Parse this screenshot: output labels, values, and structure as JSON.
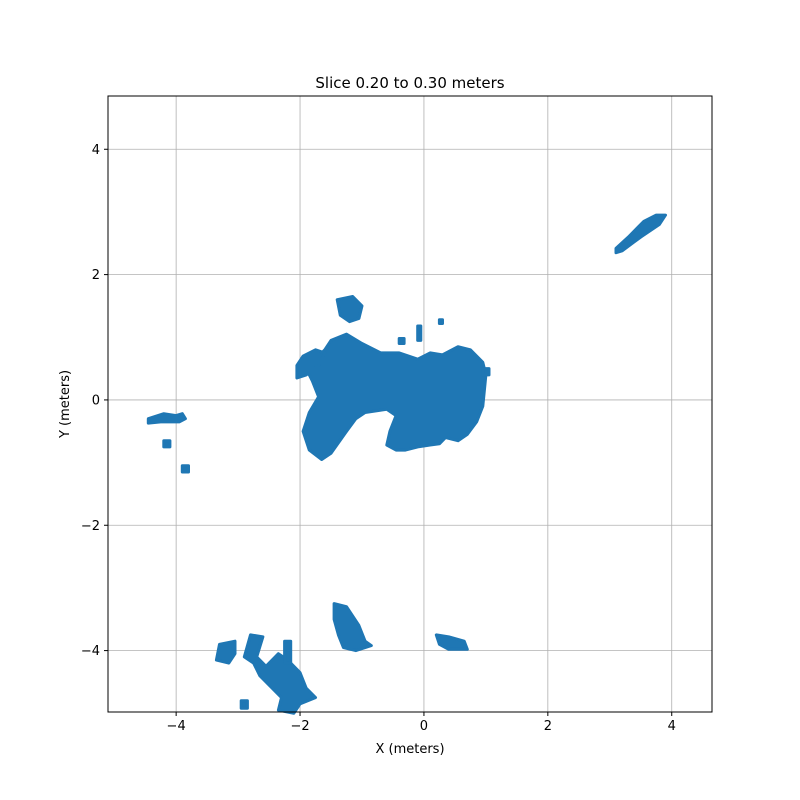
{
  "chart_data": {
    "type": "scatter",
    "title": "Slice 0.20 to 0.30 meters",
    "xlabel": "X (meters)",
    "ylabel": "Y (meters)",
    "xlim": [
      -5.1,
      4.65
    ],
    "ylim": [
      -4.98,
      4.85
    ],
    "xticks": [
      -4,
      -2,
      0,
      2,
      4
    ],
    "yticks": [
      -4,
      -2,
      0,
      2,
      4
    ],
    "xtick_labels": [
      "−4",
      "−2",
      "0",
      "2",
      "4"
    ],
    "ytick_labels": [
      "−4",
      "−2",
      "0",
      "2",
      "4"
    ],
    "grid": true,
    "color": "#1f77b4",
    "clusters": [
      {
        "name": "central-mass",
        "points": [
          [
            -1.5,
            0.95
          ],
          [
            -1.25,
            1.05
          ],
          [
            -1.0,
            0.9
          ],
          [
            -0.7,
            0.75
          ],
          [
            -0.4,
            0.75
          ],
          [
            -0.1,
            0.65
          ],
          [
            0.1,
            0.75
          ],
          [
            0.3,
            0.72
          ],
          [
            0.55,
            0.85
          ],
          [
            0.75,
            0.8
          ],
          [
            0.95,
            0.6
          ],
          [
            1.0,
            0.4
          ],
          [
            0.95,
            -0.1
          ],
          [
            0.85,
            -0.35
          ],
          [
            0.7,
            -0.55
          ],
          [
            0.55,
            -0.65
          ],
          [
            0.35,
            -0.6
          ],
          [
            0.25,
            -0.7
          ],
          [
            0.1,
            -0.72
          ],
          [
            -0.1,
            -0.75
          ],
          [
            -0.3,
            -0.8
          ],
          [
            -0.45,
            -0.8
          ],
          [
            -0.6,
            -0.72
          ],
          [
            -0.55,
            -0.5
          ],
          [
            -0.45,
            -0.25
          ],
          [
            -0.6,
            -0.15
          ],
          [
            -0.95,
            -0.2
          ],
          [
            -1.1,
            -0.3
          ],
          [
            -1.25,
            -0.5
          ],
          [
            -1.5,
            -0.85
          ],
          [
            -1.65,
            -0.95
          ],
          [
            -1.85,
            -0.8
          ],
          [
            -1.95,
            -0.5
          ],
          [
            -1.85,
            -0.2
          ],
          [
            -1.7,
            0.05
          ],
          [
            -1.8,
            0.3
          ],
          [
            -1.9,
            0.5
          ],
          [
            -1.75,
            0.65
          ],
          [
            -1.6,
            0.8
          ]
        ]
      },
      {
        "name": "left-arm",
        "points": [
          [
            -2.05,
            0.55
          ],
          [
            -1.95,
            0.7
          ],
          [
            -1.75,
            0.8
          ],
          [
            -1.6,
            0.75
          ],
          [
            -1.7,
            0.55
          ],
          [
            -1.9,
            0.4
          ],
          [
            -2.05,
            0.35
          ]
        ]
      },
      {
        "name": "upper-blob",
        "points": [
          [
            -1.4,
            1.6
          ],
          [
            -1.15,
            1.65
          ],
          [
            -1.0,
            1.5
          ],
          [
            -1.05,
            1.3
          ],
          [
            -1.2,
            1.25
          ],
          [
            -1.35,
            1.35
          ]
        ]
      },
      {
        "name": "small-right-1",
        "points": [
          [
            0.95,
            0.5
          ],
          [
            1.05,
            0.5
          ],
          [
            1.05,
            0.4
          ],
          [
            0.95,
            0.4
          ]
        ]
      },
      {
        "name": "small-top-1",
        "points": [
          [
            -0.1,
            1.18
          ],
          [
            -0.05,
            1.18
          ],
          [
            -0.05,
            0.95
          ],
          [
            -0.1,
            0.95
          ]
        ]
      },
      {
        "name": "small-top-2",
        "points": [
          [
            0.25,
            1.28
          ],
          [
            0.3,
            1.28
          ],
          [
            0.3,
            1.22
          ],
          [
            0.25,
            1.22
          ]
        ]
      },
      {
        "name": "small-top-3",
        "points": [
          [
            -0.4,
            0.98
          ],
          [
            -0.32,
            0.98
          ],
          [
            -0.32,
            0.9
          ],
          [
            -0.4,
            0.9
          ]
        ]
      },
      {
        "name": "northeast-streak",
        "points": [
          [
            3.1,
            2.35
          ],
          [
            3.2,
            2.38
          ],
          [
            3.5,
            2.6
          ],
          [
            3.8,
            2.8
          ],
          [
            3.9,
            2.95
          ],
          [
            3.75,
            2.95
          ],
          [
            3.55,
            2.85
          ],
          [
            3.3,
            2.6
          ],
          [
            3.1,
            2.42
          ]
        ]
      },
      {
        "name": "west-streak",
        "points": [
          [
            -4.45,
            -0.3
          ],
          [
            -4.2,
            -0.22
          ],
          [
            -4.0,
            -0.25
          ],
          [
            -3.9,
            -0.22
          ],
          [
            -3.85,
            -0.3
          ],
          [
            -3.95,
            -0.35
          ],
          [
            -4.25,
            -0.35
          ],
          [
            -4.45,
            -0.37
          ]
        ]
      },
      {
        "name": "west-dot-1",
        "points": [
          [
            -4.2,
            -0.65
          ],
          [
            -4.1,
            -0.65
          ],
          [
            -4.1,
            -0.75
          ],
          [
            -4.2,
            -0.75
          ]
        ]
      },
      {
        "name": "west-dot-2",
        "points": [
          [
            -3.9,
            -1.05
          ],
          [
            -3.8,
            -1.05
          ],
          [
            -3.8,
            -1.15
          ],
          [
            -3.9,
            -1.15
          ]
        ]
      },
      {
        "name": "south-center-blob",
        "points": [
          [
            -1.45,
            -3.25
          ],
          [
            -1.25,
            -3.3
          ],
          [
            -1.05,
            -3.6
          ],
          [
            -0.95,
            -3.85
          ],
          [
            -0.85,
            -3.92
          ],
          [
            -1.1,
            -4.0
          ],
          [
            -1.3,
            -3.95
          ],
          [
            -1.38,
            -3.75
          ],
          [
            -1.45,
            -3.5
          ]
        ]
      },
      {
        "name": "south-right-blob",
        "points": [
          [
            0.2,
            -3.75
          ],
          [
            0.4,
            -3.78
          ],
          [
            0.65,
            -3.85
          ],
          [
            0.7,
            -3.98
          ],
          [
            0.4,
            -3.98
          ],
          [
            0.25,
            -3.9
          ]
        ]
      },
      {
        "name": "southwest-cluster-a",
        "points": [
          [
            -3.3,
            -3.9
          ],
          [
            -3.05,
            -3.85
          ],
          [
            -3.05,
            -4.05
          ],
          [
            -3.15,
            -4.2
          ],
          [
            -3.35,
            -4.15
          ]
        ]
      },
      {
        "name": "southwest-cluster-b",
        "points": [
          [
            -2.8,
            -3.75
          ],
          [
            -2.6,
            -3.78
          ],
          [
            -2.7,
            -4.1
          ],
          [
            -2.55,
            -4.25
          ],
          [
            -2.35,
            -4.05
          ],
          [
            -2.2,
            -4.15
          ],
          [
            -2.0,
            -4.35
          ],
          [
            -1.9,
            -4.6
          ],
          [
            -1.75,
            -4.75
          ],
          [
            -2.0,
            -4.85
          ],
          [
            -2.1,
            -5.0
          ],
          [
            -2.35,
            -4.95
          ],
          [
            -2.3,
            -4.75
          ],
          [
            -2.45,
            -4.6
          ],
          [
            -2.65,
            -4.4
          ],
          [
            -2.75,
            -4.2
          ],
          [
            -2.9,
            -4.1
          ]
        ]
      },
      {
        "name": "southwest-dot",
        "points": [
          [
            -2.95,
            -4.8
          ],
          [
            -2.85,
            -4.8
          ],
          [
            -2.85,
            -4.92
          ],
          [
            -2.95,
            -4.92
          ]
        ]
      },
      {
        "name": "southwest-stem",
        "points": [
          [
            -2.25,
            -3.85
          ],
          [
            -2.15,
            -3.85
          ],
          [
            -2.15,
            -4.2
          ],
          [
            -2.25,
            -4.2
          ]
        ]
      }
    ]
  }
}
